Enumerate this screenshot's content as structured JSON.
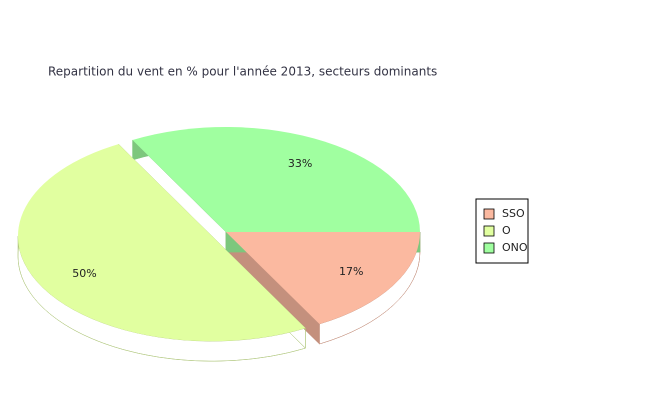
{
  "chart_data": {
    "type": "pie",
    "title": "Repartition du vent en % pour l'année 2013, secteurs dominants",
    "categories": [
      "SSO",
      "O",
      "ONO"
    ],
    "values": [
      17,
      50,
      33
    ],
    "value_labels": [
      "17%",
      "50%",
      "33%"
    ],
    "colors": [
      "#fbb9a0",
      "#e1ffa0",
      "#a0ffa0"
    ],
    "exploded": [
      false,
      true,
      false
    ],
    "legend": "right"
  }
}
